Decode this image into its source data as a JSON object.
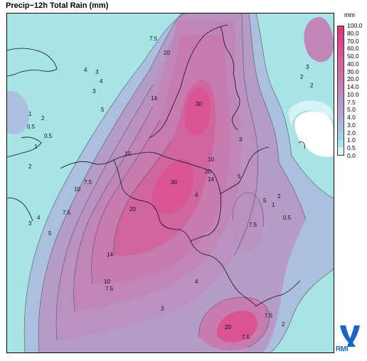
{
  "title": "Precip−12h Total Rain (mm)",
  "legend": {
    "unit": "mm",
    "levels": [
      "100.0",
      "80.0",
      "70.0",
      "60.0",
      "50.0",
      "40.0",
      "30.0",
      "20.0",
      "14.0",
      "10.0",
      "7.5",
      "5.0",
      "4.0",
      "3.0",
      "2.0",
      "1.0",
      "0.5",
      "0.0"
    ],
    "colors": [
      "#e0357f",
      "#de3f86",
      "#dc4a8d",
      "#da5494",
      "#d65e9b",
      "#d268a2",
      "#cd71a8",
      "#c77cb0",
      "#c186b8",
      "#bb91c0",
      "#b59bc8",
      "#b1a6cf",
      "#aeb2d7",
      "#abc0de",
      "#a7cfe3",
      "#abe2e8",
      "#d8f3f5",
      "#ffffff"
    ]
  },
  "contour_labels": [
    "7.5",
    "20",
    "30",
    "14",
    "10",
    "5",
    "4",
    "3",
    "2",
    "1",
    "0.5",
    "7.5",
    "10",
    "30",
    "20",
    "14",
    "7.5",
    "5",
    "4",
    "3",
    "2",
    "0.5",
    "1",
    "3",
    "4",
    "2",
    "7.5",
    "5",
    "10",
    "20",
    "14",
    "3",
    "2",
    "1",
    "0.5",
    "2",
    "3",
    "7.5",
    "10",
    "20",
    "7.5",
    "4",
    "3",
    "2",
    "4",
    "5",
    "7.5"
  ],
  "logo": {
    "text": "RMI"
  }
}
